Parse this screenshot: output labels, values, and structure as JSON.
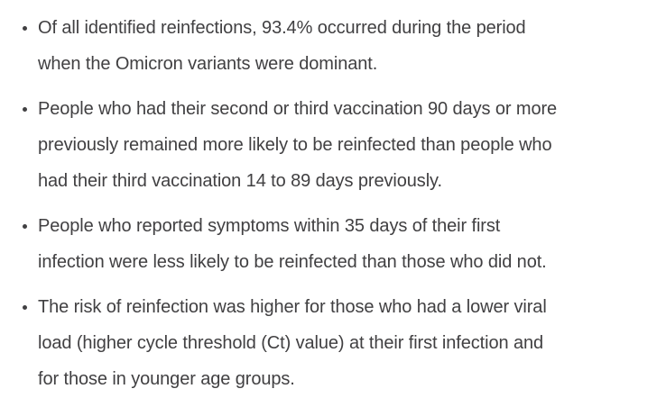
{
  "colors": {
    "text": "#414042",
    "background": "#ffffff"
  },
  "list": {
    "items": [
      {
        "lines": [
          "Of all identified reinfections, 93.4% occurred during the period",
          "when the Omicron variants were dominant."
        ]
      },
      {
        "lines": [
          "People who had their second or third vaccination 90 days or more",
          "previously remained more likely to be reinfected than people who",
          "had their third vaccination 14 to 89 days previously."
        ]
      },
      {
        "lines": [
          "People who reported symptoms within 35 days of their first",
          "infection were less likely to be reinfected than those who did not."
        ]
      },
      {
        "lines": [
          "The risk of reinfection was higher for those who had a lower viral",
          "load (higher cycle threshold (Ct) value) at their first infection and",
          "for those in younger age groups."
        ]
      }
    ]
  }
}
